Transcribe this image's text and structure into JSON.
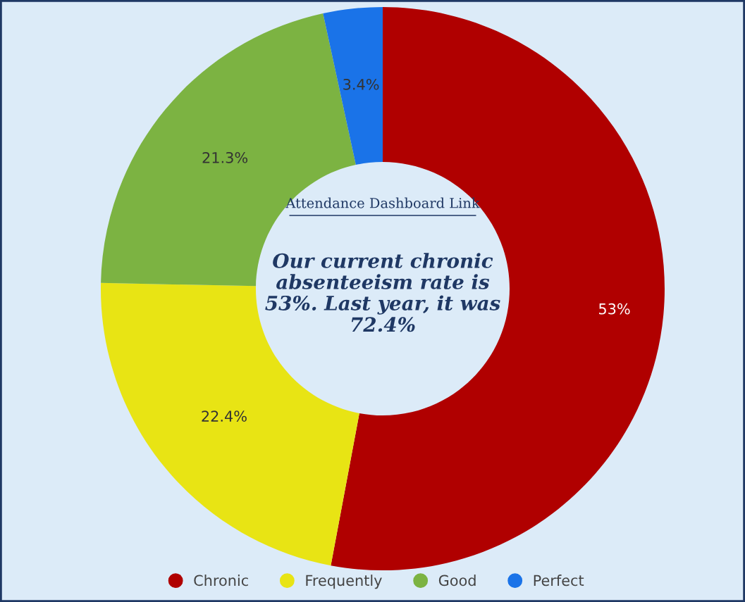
{
  "chart_data": {
    "type": "donut",
    "categories": [
      "Chronic",
      "Frequently",
      "Good",
      "Perfect"
    ],
    "values": [
      53,
      22.4,
      21.3,
      3.4
    ],
    "value_labels": [
      "53%",
      "22.4%",
      "21.3%",
      "3.4%"
    ],
    "colors": [
      "#b00000",
      "#e8e414",
      "#7cb342",
      "#1a73e8"
    ],
    "annotations": [
      "Attendance Dashboard Link",
      "Our current chronic absenteeism rate is 53%. Last year, it was 72.4%"
    ],
    "legend": "bottom"
  }
}
